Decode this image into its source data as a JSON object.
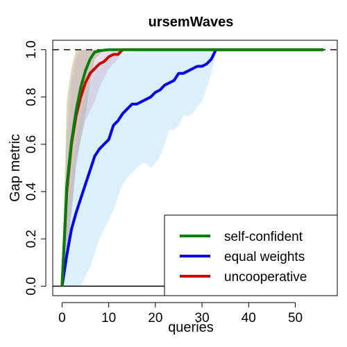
{
  "chart_data": {
    "type": "line",
    "title": "ursemWaves",
    "xlabel": "queries",
    "ylabel": "Gap metric",
    "xlim": [
      -2,
      59
    ],
    "ylim": [
      -0.04,
      1.04
    ],
    "xticks": [
      0,
      10,
      20,
      30,
      40,
      50
    ],
    "yticks": [
      0.0,
      0.2,
      0.4,
      0.6,
      0.8,
      1.0
    ],
    "reference_lines": [
      {
        "y": 1.0,
        "style": "dashed"
      },
      {
        "y": 0.0,
        "style": "solid"
      }
    ],
    "legend_position": "bottom-right",
    "series": [
      {
        "name": "self-confident",
        "color": "#008000",
        "fill_color": "#8b8b3a",
        "fill_opacity": 0.35,
        "x": [
          0,
          1,
          2,
          3,
          4,
          5,
          6,
          7,
          8,
          9,
          10,
          12,
          15,
          20,
          30,
          40,
          56
        ],
        "y": [
          0.0,
          0.42,
          0.61,
          0.74,
          0.84,
          0.91,
          0.96,
          0.99,
          0.995,
          0.998,
          1.0,
          1.0,
          1.0,
          1.0,
          1.0,
          1.0,
          1.0
        ],
        "upper": [
          0.0,
          0.78,
          0.92,
          1.0,
          1.0,
          1.0,
          1.0,
          1.0,
          1.0,
          1.0,
          1.0,
          1.0,
          1.0,
          1.0,
          1.0,
          1.0,
          1.0
        ],
        "lower": [
          0.0,
          0.12,
          0.32,
          0.52,
          0.62,
          0.72,
          0.86,
          0.96,
          0.98,
          1.0,
          1.0,
          1.0,
          1.0,
          1.0,
          1.0,
          1.0,
          1.0
        ]
      },
      {
        "name": "equal weights",
        "color": "#0000ff",
        "fill_color": "#87ceeb",
        "fill_opacity": 0.3,
        "x": [
          0,
          1,
          2,
          3,
          4,
          5,
          6,
          7,
          8,
          9,
          10,
          11,
          12,
          13,
          14,
          15,
          16,
          17,
          18,
          19,
          20,
          21,
          22,
          23,
          24,
          25,
          26,
          27,
          28,
          29,
          30,
          31,
          32,
          33,
          34,
          36,
          40,
          45,
          50,
          56
        ],
        "y": [
          0.0,
          0.13,
          0.24,
          0.31,
          0.37,
          0.43,
          0.49,
          0.55,
          0.58,
          0.6,
          0.62,
          0.68,
          0.7,
          0.73,
          0.75,
          0.77,
          0.77,
          0.78,
          0.79,
          0.8,
          0.82,
          0.83,
          0.85,
          0.86,
          0.87,
          0.9,
          0.9,
          0.91,
          0.92,
          0.93,
          0.93,
          0.94,
          0.96,
          1.0,
          1.0,
          1.0,
          1.0,
          1.0,
          1.0,
          1.0
        ],
        "upper": [
          0.0,
          0.3,
          0.45,
          0.6,
          0.72,
          0.8,
          0.86,
          0.9,
          0.92,
          0.94,
          0.96,
          0.97,
          0.98,
          0.98,
          0.99,
          0.99,
          1.0,
          1.0,
          1.0,
          1.0,
          1.0,
          1.0,
          1.0,
          1.0,
          1.0,
          1.0,
          1.0,
          1.0,
          1.0,
          1.0,
          1.0,
          1.0,
          1.0,
          1.0,
          1.0,
          1.0,
          1.0,
          1.0,
          1.0,
          1.0
        ],
        "lower": [
          0.0,
          0.0,
          0.0,
          0.0,
          0.0,
          0.04,
          0.08,
          0.14,
          0.2,
          0.24,
          0.28,
          0.32,
          0.38,
          0.43,
          0.46,
          0.48,
          0.5,
          0.52,
          0.52,
          0.5,
          0.52,
          0.55,
          0.6,
          0.66,
          0.66,
          0.68,
          0.72,
          0.72,
          0.73,
          0.76,
          0.78,
          0.84,
          0.9,
          1.0,
          1.0,
          1.0,
          1.0,
          1.0,
          1.0,
          1.0
        ]
      },
      {
        "name": "uncooperative",
        "color": "#cc0000",
        "fill_color": "#c8a0c8",
        "fill_opacity": 0.35,
        "x": [
          0,
          1,
          2,
          3,
          4,
          5,
          6,
          7,
          8,
          9,
          10,
          11,
          12,
          13,
          15,
          20,
          30,
          40,
          56
        ],
        "y": [
          0.0,
          0.4,
          0.6,
          0.72,
          0.8,
          0.86,
          0.9,
          0.92,
          0.94,
          0.95,
          0.97,
          0.98,
          0.98,
          1.0,
          1.0,
          1.0,
          1.0,
          1.0,
          1.0
        ],
        "upper": [
          0.0,
          0.62,
          0.86,
          0.96,
          1.0,
          1.0,
          1.0,
          1.0,
          1.0,
          1.0,
          1.0,
          1.0,
          1.0,
          1.0,
          1.0,
          1.0,
          1.0,
          1.0,
          1.0
        ],
        "lower": [
          0.0,
          0.1,
          0.3,
          0.5,
          0.62,
          0.7,
          0.74,
          0.78,
          0.84,
          0.88,
          0.92,
          0.94,
          0.96,
          1.0,
          1.0,
          1.0,
          1.0,
          1.0,
          1.0
        ]
      }
    ]
  }
}
